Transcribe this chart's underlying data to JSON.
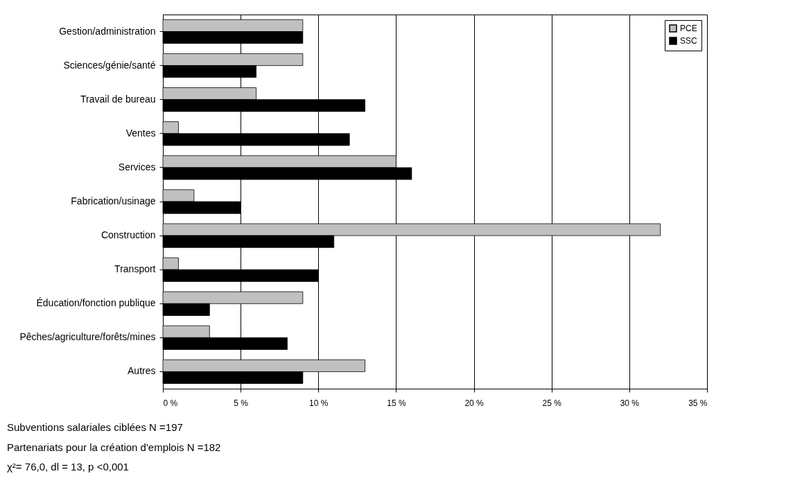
{
  "chart_data": {
    "type": "bar",
    "orientation": "horizontal",
    "categories": [
      "Gestion/administration",
      "Sciences/génie/santé",
      "Travail de bureau",
      "Ventes",
      "Services",
      "Fabrication/usinage",
      "Construction",
      "Transport",
      "Éducation/fonction publique",
      "Pêches/agriculture/forêts/mines",
      "Autres"
    ],
    "series": [
      {
        "name": "PCE",
        "color": "#c0c0c0",
        "values": [
          9,
          9,
          6,
          1,
          15,
          2,
          32,
          1,
          9,
          3,
          13
        ]
      },
      {
        "name": "SSC",
        "color": "#000000",
        "values": [
          9,
          6,
          13,
          12,
          16,
          5,
          11,
          10,
          3,
          8,
          9
        ]
      }
    ],
    "xlim": [
      0,
      35
    ],
    "xticks": [
      {
        "value": 0,
        "label": "0 %"
      },
      {
        "value": 5,
        "label": "5 %"
      },
      {
        "value": 10,
        "label": "10 %"
      },
      {
        "value": 15,
        "label": "15 %"
      },
      {
        "value": 20,
        "label": "20 %"
      },
      {
        "value": 25,
        "label": "25 %"
      },
      {
        "value": 30,
        "label": "30 %"
      },
      {
        "value": 35,
        "label": "35 %"
      }
    ],
    "grid": "x",
    "legend": "top right",
    "annotations": [
      "Subventions salariales ciblées N =197",
      "Partenariats pour la création d'emplois  N =182",
      "χ²= 76,0,  dl = 13, p <0,001"
    ]
  }
}
